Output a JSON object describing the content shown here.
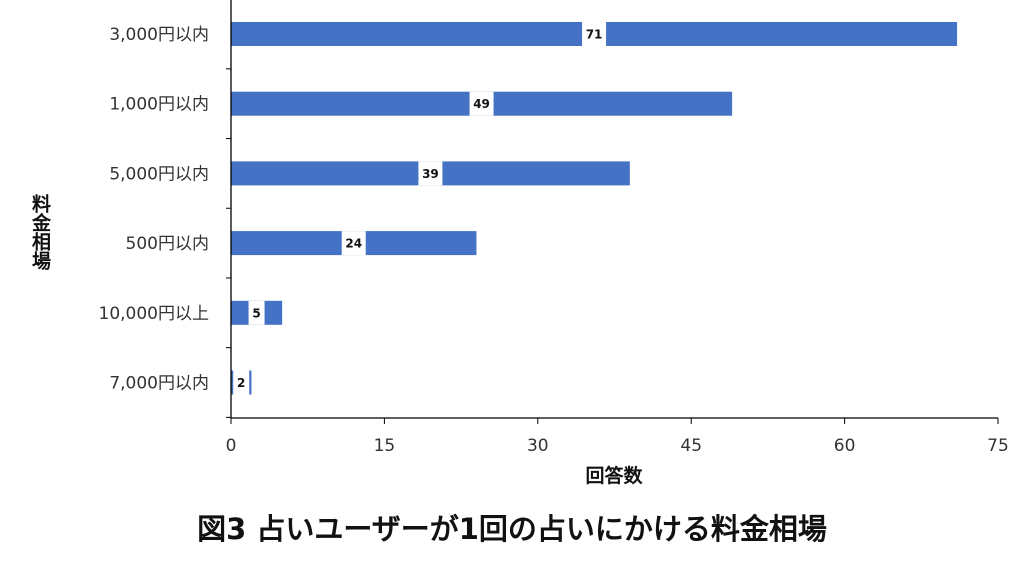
{
  "caption": "図3 占いユーザーが1回の占いにかける料金相場",
  "chart_data": {
    "type": "bar",
    "orientation": "horizontal",
    "categories": [
      "3,000円以内",
      "1,000円以内",
      "5,000円以内",
      "500円以内",
      "10,000円以上",
      "7,000円以内"
    ],
    "values": [
      71,
      49,
      39,
      24,
      5,
      2
    ],
    "xlabel": "回答数",
    "ylabel": "料金相場",
    "xlim": [
      0,
      75
    ],
    "xticks": [
      0,
      15,
      30,
      45,
      60,
      75
    ],
    "grid": false,
    "bar_color": "#4472C4",
    "data_labels": true
  }
}
